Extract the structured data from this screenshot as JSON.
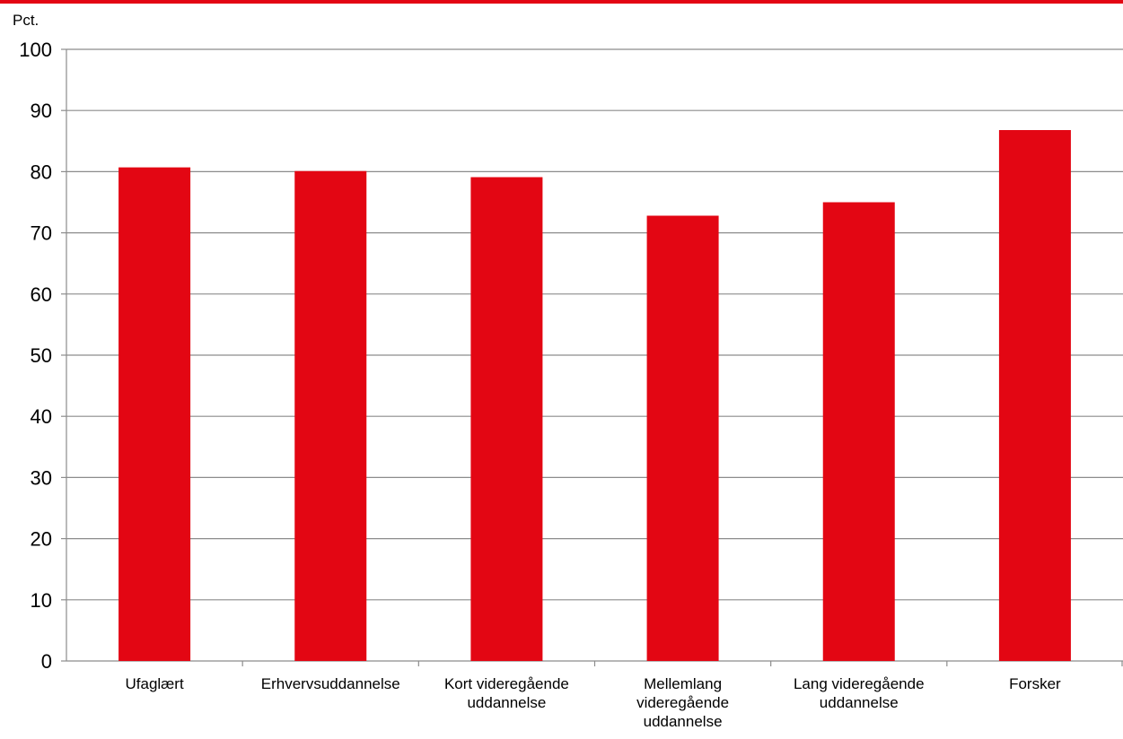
{
  "chart_data": {
    "type": "bar",
    "title": "",
    "xlabel": "",
    "ylabel": "Pct.",
    "ylim": [
      0,
      100
    ],
    "yticks": [
      0,
      10,
      20,
      30,
      40,
      50,
      60,
      70,
      80,
      90,
      100
    ],
    "grid": true,
    "legend": "none",
    "categories": [
      [
        "Ufaglært"
      ],
      [
        "Erhvervsuddannelse"
      ],
      [
        "Kort videregående",
        "uddannelse"
      ],
      [
        "Mellemlang",
        "videregående",
        "uddannelse"
      ],
      [
        "Lang videregående",
        "uddannelse"
      ],
      [
        "Forsker"
      ]
    ],
    "series": [
      {
        "color": "#e30613",
        "values": [
          80.7,
          80.1,
          79.1,
          72.8,
          75.0,
          86.8
        ]
      }
    ]
  },
  "colors": {
    "accent": "#e30613",
    "gridline": "#8c8c8c",
    "axis": "#8c8c8c"
  }
}
